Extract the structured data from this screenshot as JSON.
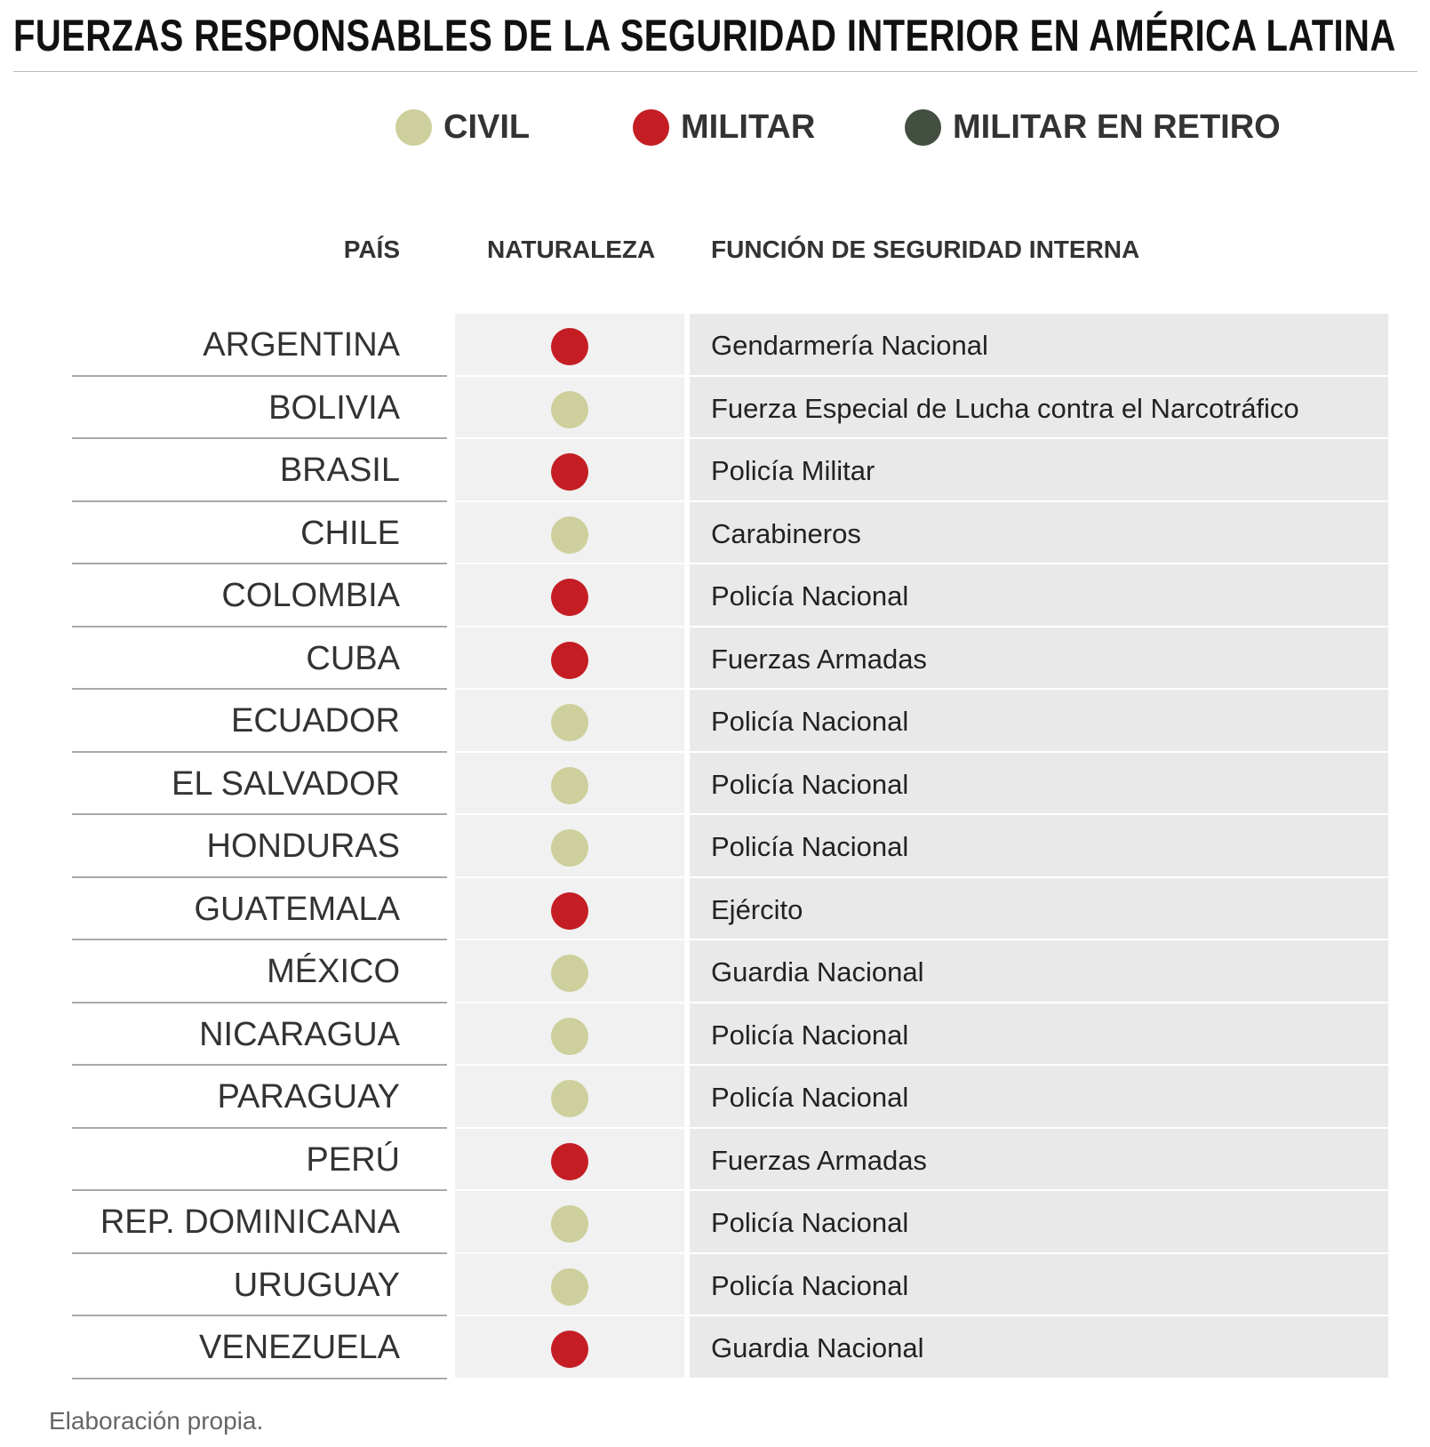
{
  "title": "FUERZAS RESPONSABLES DE LA SEGURIDAD INTERIOR EN AMÉRICA LATINA",
  "legend": [
    {
      "label": "CIVIL",
      "color": "#cdcf9c"
    },
    {
      "label": "MILITAR",
      "color": "#c41e24"
    },
    {
      "label": "MILITAR EN RETIRO",
      "color": "#434f40"
    }
  ],
  "headers": {
    "country": "PAÍS",
    "nature": "NATURALEZA",
    "function": "FUNCIÓN DE SEGURIDAD INTERNA"
  },
  "chart_data": {
    "type": "table",
    "columns": [
      "PAÍS",
      "NATURALEZA",
      "FUNCIÓN DE SEGURIDAD INTERNA"
    ],
    "rows": [
      {
        "country": "ARGENTINA",
        "nature": "MILITAR",
        "function": "Gendarmería Nacional"
      },
      {
        "country": "BOLIVIA",
        "nature": "CIVIL",
        "function": "Fuerza Especial de Lucha contra el Narcotráfico"
      },
      {
        "country": "BRASIL",
        "nature": "MILITAR",
        "function": "Policía Militar"
      },
      {
        "country": "CHILE",
        "nature": "CIVIL",
        "function": "Carabineros"
      },
      {
        "country": "COLOMBIA",
        "nature": "MILITAR",
        "function": "Policía Nacional"
      },
      {
        "country": "CUBA",
        "nature": "MILITAR",
        "function": "Fuerzas Armadas"
      },
      {
        "country": "ECUADOR",
        "nature": "CIVIL",
        "function": "Policía Nacional"
      },
      {
        "country": "EL SALVADOR",
        "nature": "CIVIL",
        "function": "Policía Nacional"
      },
      {
        "country": "HONDURAS",
        "nature": "CIVIL",
        "function": "Policía Nacional"
      },
      {
        "country": "GUATEMALA",
        "nature": "MILITAR",
        "function": "Ejército"
      },
      {
        "country": "MÉXICO",
        "nature": "CIVIL",
        "function": "Guardia Nacional"
      },
      {
        "country": "NICARAGUA",
        "nature": "CIVIL",
        "function": "Policía Nacional"
      },
      {
        "country": "PARAGUAY",
        "nature": "CIVIL",
        "function": "Policía Nacional"
      },
      {
        "country": "PERÚ",
        "nature": "MILITAR",
        "function": "Fuerzas Armadas"
      },
      {
        "country": "REP. DOMINICANA",
        "nature": "CIVIL",
        "function": "Policía Nacional"
      },
      {
        "country": "URUGUAY",
        "nature": "CIVIL",
        "function": "Policía Nacional"
      },
      {
        "country": "VENEZUELA",
        "nature": "MILITAR",
        "function": "Guardia Nacional"
      }
    ]
  },
  "source": "Elaboración propia."
}
